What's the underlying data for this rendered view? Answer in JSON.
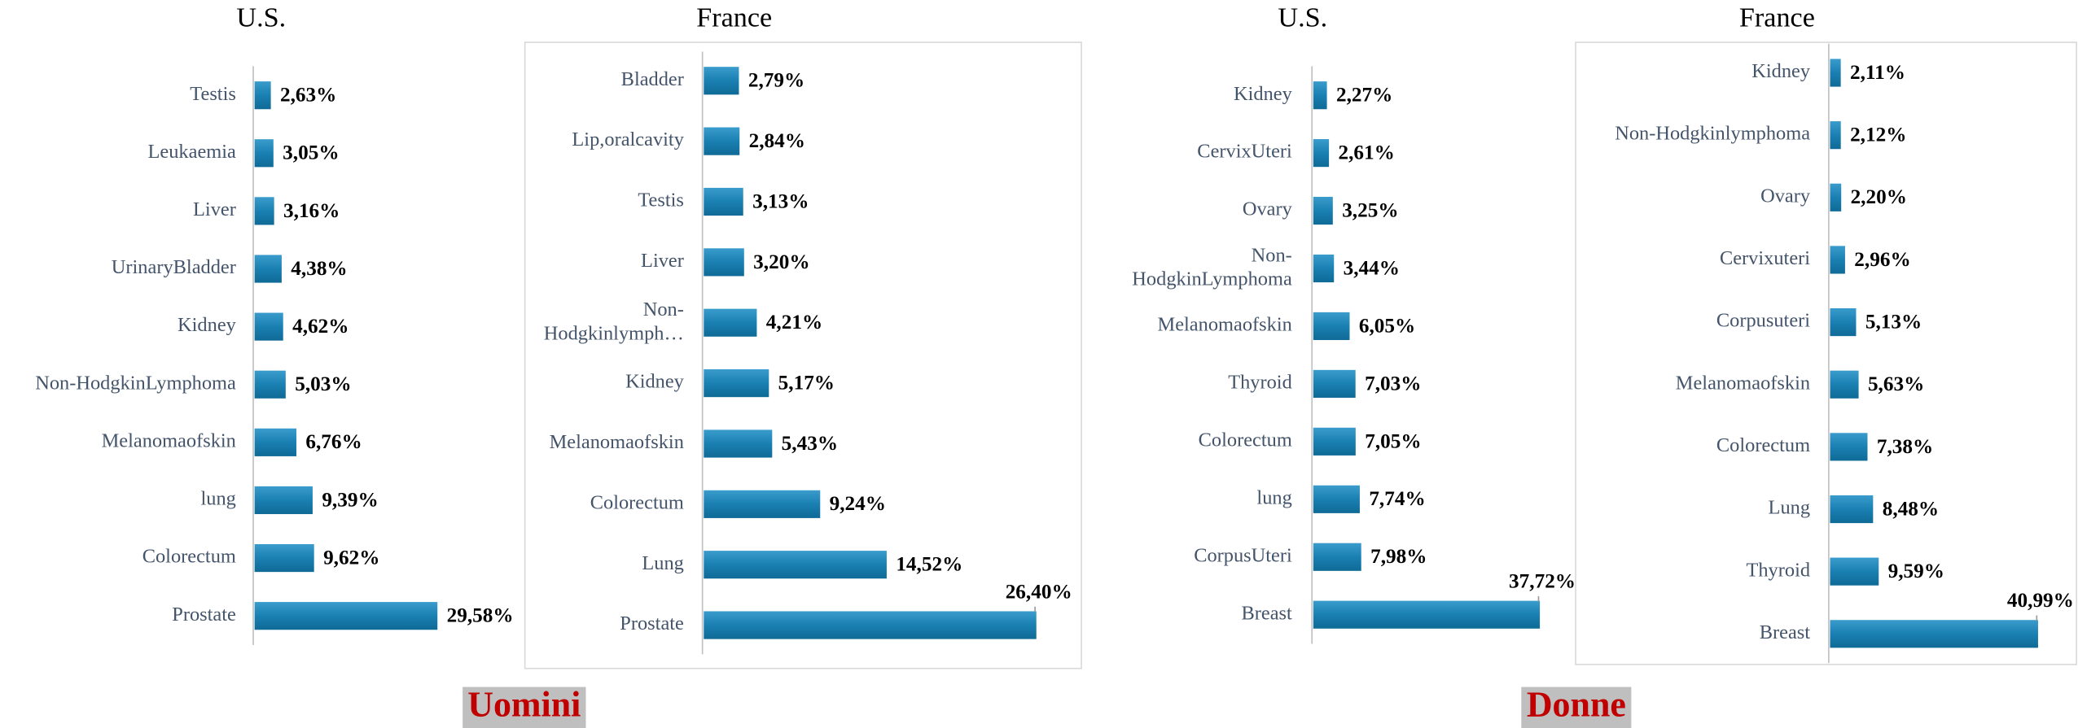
{
  "chart_data": [
    {
      "type": "bar",
      "orientation": "horizontal",
      "title": "U.S.",
      "color": "#1a80b2",
      "categories": [
        "Testis",
        "Leukaemia",
        "Liver",
        "UrinaryBladder",
        "Kidney",
        "Non-HodgkinLymphoma",
        "Melanomaofskin",
        "lung",
        "Colorectum",
        "Prostate"
      ],
      "values": [
        2.63,
        3.05,
        3.16,
        4.38,
        4.62,
        5.03,
        6.76,
        9.39,
        9.62,
        29.58
      ],
      "value_labels": [
        "2,63%",
        "3,05%",
        "3,16%",
        "4,38%",
        "4,62%",
        "5,03%",
        "6,76%",
        "9,39%",
        "9,62%",
        "29,58%"
      ]
    },
    {
      "type": "bar",
      "orientation": "horizontal",
      "title": "France",
      "color": "#1a80b2",
      "categories": [
        "Bladder",
        "Lip,oralcavity",
        "Testis",
        "Liver",
        "Non-Hodgkinlymph…",
        "Kidney",
        "Melanomaofskin",
        "Colorectum",
        "Lung",
        "Prostate"
      ],
      "values": [
        2.79,
        2.84,
        3.13,
        3.2,
        4.21,
        5.17,
        5.43,
        9.24,
        14.52,
        26.4
      ],
      "value_labels": [
        "2,79%",
        "2,84%",
        "3,13%",
        "3,20%",
        "4,21%",
        "5,17%",
        "5,43%",
        "9,24%",
        "14,52%",
        "26,40%"
      ]
    },
    {
      "type": "bar",
      "orientation": "horizontal",
      "title": "U.S.",
      "color": "#1a80b2",
      "categories": [
        "Kidney",
        "CervixUteri",
        "Ovary",
        "Non-HodgkinLymphoma",
        "Melanomaofskin",
        "Thyroid",
        "Colorectum",
        "lung",
        "CorpusUteri",
        "Breast"
      ],
      "values": [
        2.27,
        2.61,
        3.25,
        3.44,
        6.05,
        7.03,
        7.05,
        7.74,
        7.98,
        37.72
      ],
      "value_labels": [
        "2,27%",
        "2,61%",
        "3,25%",
        "3,44%",
        "6,05%",
        "7,03%",
        "7,05%",
        "7,74%",
        "7,98%",
        "37,72%"
      ]
    },
    {
      "type": "bar",
      "orientation": "horizontal",
      "title": "France",
      "color": "#1a80b2",
      "categories": [
        "Kidney",
        "Non-Hodgkinlymphoma",
        "Ovary",
        "Cervixuteri",
        "Corpusuteri",
        "Melanomaofskin",
        "Colorectum",
        "Lung",
        "Thyroid",
        "Breast"
      ],
      "values": [
        2.11,
        2.12,
        2.2,
        2.96,
        5.13,
        5.63,
        7.38,
        8.48,
        9.59,
        40.99
      ],
      "value_labels": [
        "2,11%",
        "2,12%",
        "2,20%",
        "2,96%",
        "5,13%",
        "5,63%",
        "7,38%",
        "8,48%",
        "9,59%",
        "40,99%"
      ]
    }
  ],
  "captions": [
    "Uomini",
    "Donne"
  ]
}
